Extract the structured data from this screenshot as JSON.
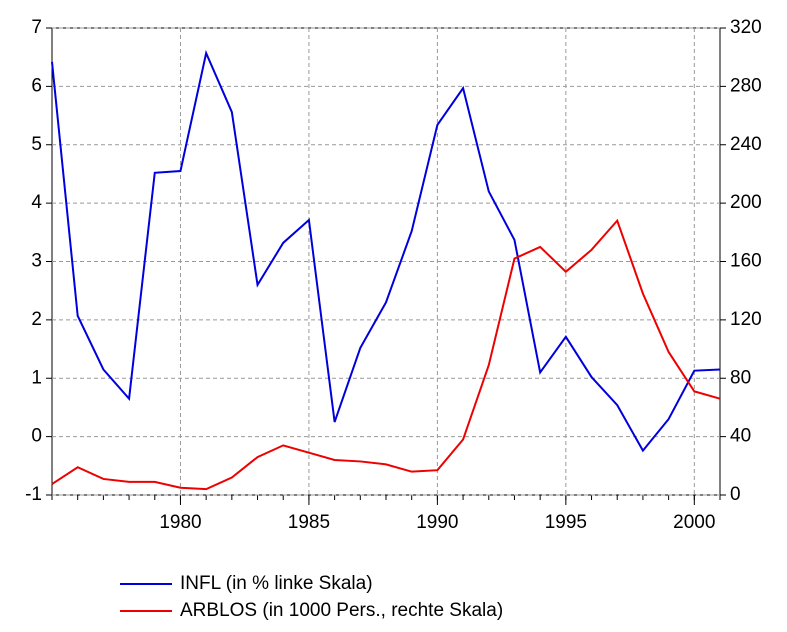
{
  "chart_data": {
    "type": "line",
    "x": [
      1975,
      1976,
      1977,
      1978,
      1979,
      1980,
      1981,
      1982,
      1983,
      1984,
      1985,
      1986,
      1987,
      1988,
      1989,
      1990,
      1991,
      1992,
      1993,
      1994,
      1995,
      1996,
      1997,
      1998,
      1999,
      2000,
      2001
    ],
    "xlim": [
      1975,
      2001
    ],
    "xticks": [
      1980,
      1985,
      1990,
      1995,
      2000
    ],
    "ylim": [
      -1,
      7
    ],
    "yticks": [
      -1,
      0,
      1,
      2,
      3,
      4,
      5,
      6,
      7
    ],
    "y2lim": [
      0,
      320
    ],
    "y2ticks": [
      0,
      40,
      80,
      120,
      160,
      200,
      240,
      280,
      320
    ],
    "grid": true,
    "legend": "bottom",
    "series": [
      {
        "name": "INFL (in % linke Skala)",
        "color": "#0000dd",
        "axis": "y",
        "values": [
          6.42,
          2.07,
          1.15,
          0.65,
          4.52,
          4.55,
          6.57,
          5.56,
          2.6,
          3.32,
          3.71,
          0.25,
          1.52,
          2.3,
          3.52,
          5.34,
          5.97,
          4.2,
          3.37,
          1.1,
          1.71,
          1.02,
          0.54,
          -0.24,
          0.3,
          1.13,
          1.15
        ]
      },
      {
        "name": "ARBLOS (in 1000 Pers., rechte Skala)",
        "color": "#ee0000",
        "axis": "y2",
        "values": [
          7.5,
          19,
          11,
          9,
          9,
          5,
          4,
          12,
          26,
          34,
          29,
          24,
          23,
          21,
          16,
          17,
          38,
          89,
          162,
          170,
          153,
          168,
          188,
          138,
          98,
          71,
          66
        ]
      }
    ]
  }
}
